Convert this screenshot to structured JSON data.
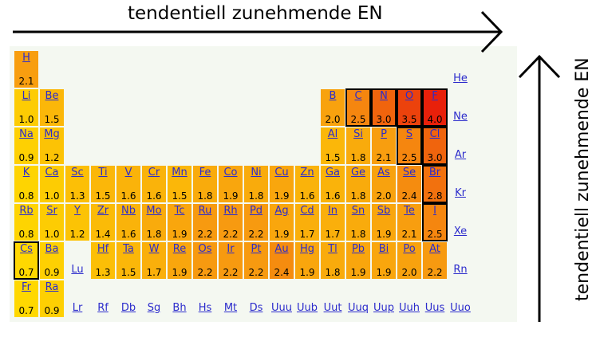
{
  "header": {
    "title": "tendentiell zunehmende EN",
    "side_title": "tendentiell zunehmende EN"
  },
  "colors": {
    "low": "#ffd800",
    "mid": "#f79a10",
    "high": "#e8200a",
    "empty_bg": "#f4f8f1",
    "link": "#2c2ccc"
  },
  "elements": [
    {
      "symbol": "H",
      "en": "2.1",
      "row": 1,
      "col": 1
    },
    {
      "symbol": "He",
      "en": "",
      "row": 1,
      "col": 18
    },
    {
      "symbol": "Li",
      "en": "1.0",
      "row": 2,
      "col": 1
    },
    {
      "symbol": "Be",
      "en": "1.5",
      "row": 2,
      "col": 2
    },
    {
      "symbol": "B",
      "en": "2.0",
      "row": 2,
      "col": 13
    },
    {
      "symbol": "C",
      "en": "2.5",
      "row": 2,
      "col": 14,
      "outlined": true
    },
    {
      "symbol": "N",
      "en": "3.0",
      "row": 2,
      "col": 15,
      "outlined": true
    },
    {
      "symbol": "O",
      "en": "3.5",
      "row": 2,
      "col": 16,
      "outlined": true
    },
    {
      "symbol": "F",
      "en": "4.0",
      "row": 2,
      "col": 17,
      "outlined": true
    },
    {
      "symbol": "Ne",
      "en": "",
      "row": 2,
      "col": 18
    },
    {
      "symbol": "Na",
      "en": "0.9",
      "row": 3,
      "col": 1
    },
    {
      "symbol": "Mg",
      "en": "1.2",
      "row": 3,
      "col": 2
    },
    {
      "symbol": "Al",
      "en": "1.5",
      "row": 3,
      "col": 13
    },
    {
      "symbol": "Si",
      "en": "1.8",
      "row": 3,
      "col": 14
    },
    {
      "symbol": "P",
      "en": "2.1",
      "row": 3,
      "col": 15
    },
    {
      "symbol": "S",
      "en": "2.5",
      "row": 3,
      "col": 16,
      "outlined": true
    },
    {
      "symbol": "Cl",
      "en": "3.0",
      "row": 3,
      "col": 17,
      "outlined": true
    },
    {
      "symbol": "Ar",
      "en": "",
      "row": 3,
      "col": 18
    },
    {
      "symbol": "K",
      "en": "0.8",
      "row": 4,
      "col": 1
    },
    {
      "symbol": "Ca",
      "en": "1.0",
      "row": 4,
      "col": 2
    },
    {
      "symbol": "Sc",
      "en": "1.3",
      "row": 4,
      "col": 3
    },
    {
      "symbol": "Ti",
      "en": "1.5",
      "row": 4,
      "col": 4
    },
    {
      "symbol": "V",
      "en": "1.6",
      "row": 4,
      "col": 5
    },
    {
      "symbol": "Cr",
      "en": "1.6",
      "row": 4,
      "col": 6
    },
    {
      "symbol": "Mn",
      "en": "1.5",
      "row": 4,
      "col": 7
    },
    {
      "symbol": "Fe",
      "en": "1.8",
      "row": 4,
      "col": 8
    },
    {
      "symbol": "Co",
      "en": "1.9",
      "row": 4,
      "col": 9
    },
    {
      "symbol": "Ni",
      "en": "1.8",
      "row": 4,
      "col": 10
    },
    {
      "symbol": "Cu",
      "en": "1.9",
      "row": 4,
      "col": 11
    },
    {
      "symbol": "Zn",
      "en": "1.6",
      "row": 4,
      "col": 12
    },
    {
      "symbol": "Ga",
      "en": "1.6",
      "row": 4,
      "col": 13
    },
    {
      "symbol": "Ge",
      "en": "1.8",
      "row": 4,
      "col": 14
    },
    {
      "symbol": "As",
      "en": "2.0",
      "row": 4,
      "col": 15
    },
    {
      "symbol": "Se",
      "en": "2.4",
      "row": 4,
      "col": 16
    },
    {
      "symbol": "Br",
      "en": "2.8",
      "row": 4,
      "col": 17,
      "outlined": true
    },
    {
      "symbol": "Kr",
      "en": "",
      "row": 4,
      "col": 18
    },
    {
      "symbol": "Rb",
      "en": "0.8",
      "row": 5,
      "col": 1
    },
    {
      "symbol": "Sr",
      "en": "1.0",
      "row": 5,
      "col": 2
    },
    {
      "symbol": "Y",
      "en": "1.2",
      "row": 5,
      "col": 3
    },
    {
      "symbol": "Zr",
      "en": "1.4",
      "row": 5,
      "col": 4
    },
    {
      "symbol": "Nb",
      "en": "1.6",
      "row": 5,
      "col": 5
    },
    {
      "symbol": "Mo",
      "en": "1.8",
      "row": 5,
      "col": 6
    },
    {
      "symbol": "Tc",
      "en": "1.9",
      "row": 5,
      "col": 7
    },
    {
      "symbol": "Ru",
      "en": "2.2",
      "row": 5,
      "col": 8
    },
    {
      "symbol": "Rh",
      "en": "2.2",
      "row": 5,
      "col": 9
    },
    {
      "symbol": "Pd",
      "en": "2.2",
      "row": 5,
      "col": 10
    },
    {
      "symbol": "Ag",
      "en": "1.9",
      "row": 5,
      "col": 11
    },
    {
      "symbol": "Cd",
      "en": "1.7",
      "row": 5,
      "col": 12
    },
    {
      "symbol": "In",
      "en": "1.7",
      "row": 5,
      "col": 13
    },
    {
      "symbol": "Sn",
      "en": "1.8",
      "row": 5,
      "col": 14
    },
    {
      "symbol": "Sb",
      "en": "1.9",
      "row": 5,
      "col": 15
    },
    {
      "symbol": "Te",
      "en": "2.1",
      "row": 5,
      "col": 16
    },
    {
      "symbol": "I",
      "en": "2.5",
      "row": 5,
      "col": 17,
      "outlined": true
    },
    {
      "symbol": "Xe",
      "en": "",
      "row": 5,
      "col": 18
    },
    {
      "symbol": "Cs",
      "en": "0.7",
      "row": 6,
      "col": 1,
      "outlined": true
    },
    {
      "symbol": "Ba",
      "en": "0.9",
      "row": 6,
      "col": 2
    },
    {
      "symbol": "Lu",
      "en": "",
      "row": 6,
      "col": 3
    },
    {
      "symbol": "Hf",
      "en": "1.3",
      "row": 6,
      "col": 4
    },
    {
      "symbol": "Ta",
      "en": "1.5",
      "row": 6,
      "col": 5
    },
    {
      "symbol": "W",
      "en": "1.7",
      "row": 6,
      "col": 6
    },
    {
      "symbol": "Re",
      "en": "1.9",
      "row": 6,
      "col": 7
    },
    {
      "symbol": "Os",
      "en": "2.2",
      "row": 6,
      "col": 8
    },
    {
      "symbol": "Ir",
      "en": "2.2",
      "row": 6,
      "col": 9
    },
    {
      "symbol": "Pt",
      "en": "2.2",
      "row": 6,
      "col": 10
    },
    {
      "symbol": "Au",
      "en": "2.4",
      "row": 6,
      "col": 11
    },
    {
      "symbol": "Hg",
      "en": "1.9",
      "row": 6,
      "col": 12
    },
    {
      "symbol": "Tl",
      "en": "1.8",
      "row": 6,
      "col": 13
    },
    {
      "symbol": "Pb",
      "en": "1.9",
      "row": 6,
      "col": 14
    },
    {
      "symbol": "Bi",
      "en": "1.9",
      "row": 6,
      "col": 15
    },
    {
      "symbol": "Po",
      "en": "2.0",
      "row": 6,
      "col": 16
    },
    {
      "symbol": "At",
      "en": "2.2",
      "row": 6,
      "col": 17
    },
    {
      "symbol": "Rn",
      "en": "",
      "row": 6,
      "col": 18
    },
    {
      "symbol": "Fr",
      "en": "0.7",
      "row": 7,
      "col": 1
    },
    {
      "symbol": "Ra",
      "en": "0.9",
      "row": 7,
      "col": 2
    },
    {
      "symbol": "Lr",
      "en": "",
      "row": 7,
      "col": 3
    },
    {
      "symbol": "Rf",
      "en": "",
      "row": 7,
      "col": 4
    },
    {
      "symbol": "Db",
      "en": "",
      "row": 7,
      "col": 5
    },
    {
      "symbol": "Sg",
      "en": "",
      "row": 7,
      "col": 6
    },
    {
      "symbol": "Bh",
      "en": "",
      "row": 7,
      "col": 7
    },
    {
      "symbol": "Hs",
      "en": "",
      "row": 7,
      "col": 8
    },
    {
      "symbol": "Mt",
      "en": "",
      "row": 7,
      "col": 9
    },
    {
      "symbol": "Ds",
      "en": "",
      "row": 7,
      "col": 10
    },
    {
      "symbol": "Uuu",
      "en": "",
      "row": 7,
      "col": 11
    },
    {
      "symbol": "Uub",
      "en": "",
      "row": 7,
      "col": 12
    },
    {
      "symbol": "Uut",
      "en": "",
      "row": 7,
      "col": 13
    },
    {
      "symbol": "Uuq",
      "en": "",
      "row": 7,
      "col": 14
    },
    {
      "symbol": "Uup",
      "en": "",
      "row": 7,
      "col": 15
    },
    {
      "symbol": "Uuh",
      "en": "",
      "row": 7,
      "col": 16
    },
    {
      "symbol": "Uus",
      "en": "",
      "row": 7,
      "col": 17
    },
    {
      "symbol": "Uuo",
      "en": "",
      "row": 7,
      "col": 18
    }
  ]
}
